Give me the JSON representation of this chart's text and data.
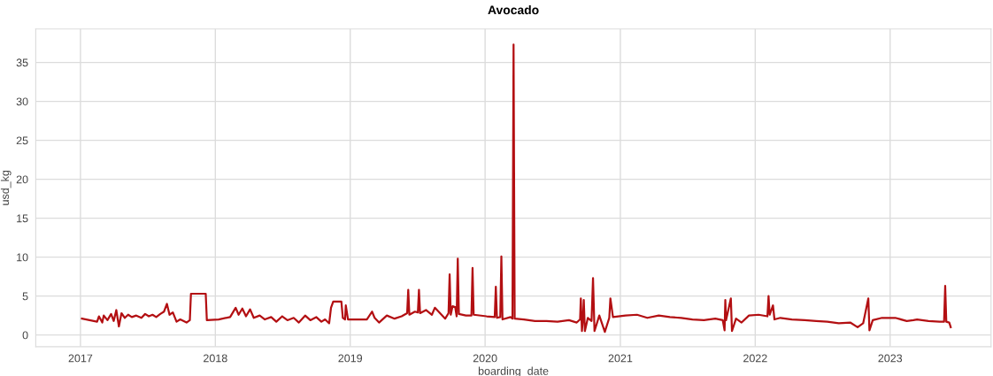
{
  "chart_data": {
    "type": "line",
    "title": "Avocado",
    "xlabel": "boarding_date",
    "ylabel": "usd_kg",
    "xlim": [
      "2016-09-02",
      "2023-10-01"
    ],
    "ylim": [
      -1.5,
      39.3
    ],
    "xticks": [
      {
        "value": "2017-01-01",
        "label": "2017"
      },
      {
        "value": "2018-01-01",
        "label": "2018"
      },
      {
        "value": "2019-01-01",
        "label": "2019"
      },
      {
        "value": "2020-01-01",
        "label": "2020"
      },
      {
        "value": "2021-01-01",
        "label": "2021"
      },
      {
        "value": "2022-01-01",
        "label": "2022"
      },
      {
        "value": "2023-01-01",
        "label": "2023"
      }
    ],
    "yticks": [
      0,
      5,
      10,
      15,
      20,
      25,
      30,
      35
    ],
    "grid": true,
    "line_style": "solid",
    "marker": "none",
    "series": [
      {
        "color": "#b30f12",
        "x": [
          "2017-01-05",
          "2017-02-15",
          "2017-02-20",
          "2017-03-01",
          "2017-03-05",
          "2017-03-15",
          "2017-03-25",
          "2017-04-01",
          "2017-04-08",
          "2017-04-15",
          "2017-04-22",
          "2017-05-01",
          "2017-05-10",
          "2017-05-20",
          "2017-06-01",
          "2017-06-15",
          "2017-06-25",
          "2017-07-05",
          "2017-07-15",
          "2017-07-25",
          "2017-08-05",
          "2017-08-15",
          "2017-08-23",
          "2017-08-30",
          "2017-09-08",
          "2017-09-18",
          "2017-09-28",
          "2017-10-15",
          "2017-10-24",
          "2017-10-27",
          "2017-12-06",
          "2017-12-09",
          "2018-01-10",
          "2018-02-10",
          "2018-02-25",
          "2018-03-05",
          "2018-03-15",
          "2018-03-25",
          "2018-04-05",
          "2018-04-15",
          "2018-05-01",
          "2018-05-15",
          "2018-06-01",
          "2018-06-15",
          "2018-07-01",
          "2018-07-15",
          "2018-08-01",
          "2018-08-15",
          "2018-09-01",
          "2018-09-15",
          "2018-10-01",
          "2018-10-15",
          "2018-10-25",
          "2018-11-05",
          "2018-11-10",
          "2018-11-16",
          "2018-12-08",
          "2018-12-12",
          "2018-12-18",
          "2018-12-20",
          "2018-12-26",
          "2019-01-15",
          "2019-02-15",
          "2019-03-01",
          "2019-03-08",
          "2019-03-20",
          "2019-04-10",
          "2019-05-01",
          "2019-05-20",
          "2019-06-04",
          "2019-06-07",
          "2019-06-10",
          "2019-06-25",
          "2019-07-03",
          "2019-07-06",
          "2019-07-09",
          "2019-07-25",
          "2019-08-10",
          "2019-08-18",
          "2019-09-05",
          "2019-09-15",
          "2019-09-24",
          "2019-09-27",
          "2019-09-30",
          "2019-10-05",
          "2019-10-12",
          "2019-10-16",
          "2019-10-19",
          "2019-10-22",
          "2019-11-10",
          "2019-11-25",
          "2019-11-28",
          "2019-12-01",
          "2020-01-05",
          "2020-01-27",
          "2020-01-30",
          "2020-02-02",
          "2020-02-11",
          "2020-02-14",
          "2020-02-17",
          "2020-03-10",
          "2020-03-15",
          "2020-03-18",
          "2020-03-21",
          "2020-04-15",
          "2020-05-15",
          "2020-06-15",
          "2020-07-15",
          "2020-08-15",
          "2020-09-05",
          "2020-09-14",
          "2020-09-16",
          "2020-09-19",
          "2020-09-22",
          "2020-09-24",
          "2020-09-27",
          "2020-10-05",
          "2020-10-15",
          "2020-10-19",
          "2020-10-23",
          "2020-11-05",
          "2020-11-20",
          "2020-12-02",
          "2020-12-05",
          "2020-12-12",
          "2021-01-15",
          "2021-02-15",
          "2021-03-15",
          "2021-04-15",
          "2021-05-15",
          "2021-06-15",
          "2021-07-15",
          "2021-08-15",
          "2021-09-15",
          "2021-10-05",
          "2021-10-10",
          "2021-10-12",
          "2021-10-14",
          "2021-10-27",
          "2021-10-30",
          "2021-11-10",
          "2021-11-25",
          "2021-12-15",
          "2022-01-10",
          "2022-02-03",
          "2022-02-06",
          "2022-02-09",
          "2022-02-18",
          "2022-02-22",
          "2022-03-10",
          "2022-04-10",
          "2022-05-15",
          "2022-06-15",
          "2022-07-15",
          "2022-08-15",
          "2022-09-15",
          "2022-10-05",
          "2022-10-20",
          "2022-11-03",
          "2022-11-06",
          "2022-11-15",
          "2022-12-10",
          "2023-01-15",
          "2023-02-15",
          "2023-03-05",
          "2023-03-15",
          "2023-04-15",
          "2023-05-15",
          "2023-05-27",
          "2023-05-30",
          "2023-06-02",
          "2023-06-10",
          "2023-06-14"
        ],
        "values": [
          2.1,
          1.7,
          2.4,
          1.6,
          2.5,
          1.9,
          2.7,
          1.8,
          3.2,
          1.1,
          2.8,
          2.2,
          2.6,
          2.3,
          2.5,
          2.2,
          2.7,
          2.4,
          2.6,
          2.3,
          2.7,
          3.0,
          4.0,
          2.6,
          2.9,
          1.7,
          2.0,
          1.6,
          1.9,
          5.3,
          5.3,
          1.9,
          2.0,
          2.3,
          3.5,
          2.6,
          3.4,
          2.4,
          3.3,
          2.2,
          2.5,
          2.0,
          2.3,
          1.7,
          2.4,
          1.9,
          2.2,
          1.6,
          2.5,
          1.9,
          2.3,
          1.7,
          2.0,
          1.5,
          3.5,
          4.3,
          4.3,
          2.2,
          2.0,
          3.8,
          2.0,
          2.0,
          2.0,
          3.0,
          2.2,
          1.6,
          2.5,
          2.1,
          2.4,
          2.8,
          5.8,
          2.6,
          3.0,
          2.9,
          5.8,
          2.8,
          3.2,
          2.6,
          3.5,
          2.6,
          2.1,
          2.8,
          7.8,
          2.6,
          3.7,
          3.6,
          2.4,
          9.8,
          2.7,
          2.5,
          2.5,
          8.6,
          2.6,
          2.4,
          2.3,
          6.2,
          2.2,
          2.3,
          10.1,
          2.0,
          2.3,
          2.1,
          37.3,
          2.1,
          2.0,
          1.8,
          1.8,
          1.7,
          1.9,
          1.6,
          2.0,
          4.7,
          0.5,
          2.3,
          4.5,
          0.5,
          2.2,
          1.8,
          7.3,
          0.5,
          2.5,
          0.4,
          2.2,
          4.7,
          2.3,
          2.5,
          2.6,
          2.2,
          2.5,
          2.3,
          2.2,
          2.0,
          1.9,
          2.1,
          1.9,
          0.6,
          4.5,
          1.9,
          4.7,
          0.5,
          2.1,
          1.6,
          2.5,
          2.6,
          2.4,
          5.0,
          2.6,
          3.8,
          2.0,
          2.2,
          2.0,
          1.9,
          1.8,
          1.7,
          1.5,
          1.6,
          1.0,
          1.5,
          4.7,
          0.6,
          1.9,
          2.2,
          2.2,
          1.8,
          1.9,
          2.0,
          1.8,
          1.7,
          1.7,
          6.3,
          1.7,
          1.6,
          1.0
        ]
      }
    ]
  }
}
